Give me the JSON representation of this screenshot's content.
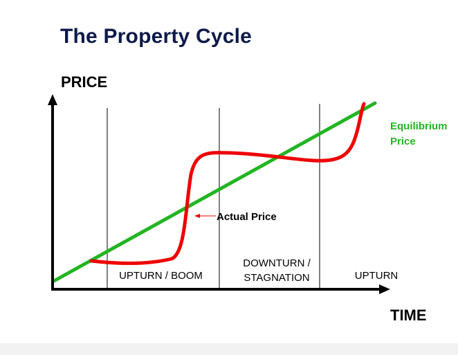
{
  "title": "The Property Cycle",
  "axes": {
    "y_label": "PRICE",
    "x_label": "TIME"
  },
  "phases": [
    {
      "label": "UPTURN / BOOM"
    },
    {
      "label": "DOWNTURN /\nSTAGNATION"
    },
    {
      "label": "UPTURN"
    }
  ],
  "equilibrium": {
    "line1": "Equilibrium",
    "line2": "Price",
    "color": "#22b522"
  },
  "actual": {
    "label": "Actual Price",
    "color": "#ee0000"
  }
}
